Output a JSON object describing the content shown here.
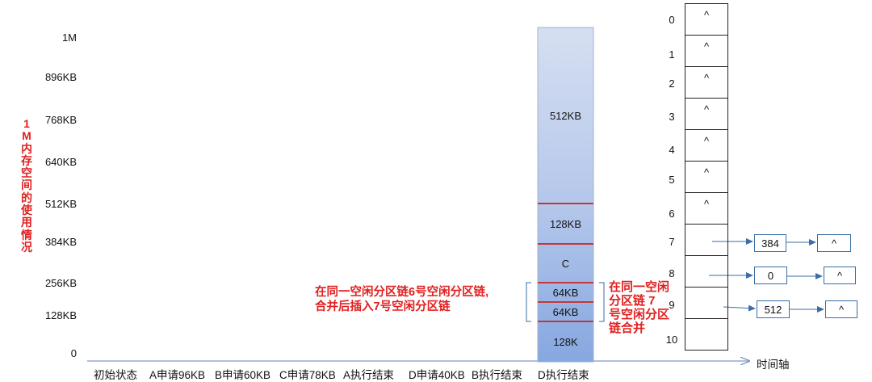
{
  "y_axis": {
    "title": "1M内存空间的使用情况",
    "ticks": [
      "1M",
      "896KB",
      "768KB",
      "640KB",
      "512KB",
      "384KB",
      "256KB",
      "128KB",
      "0"
    ]
  },
  "x_axis": {
    "title": "时间轴",
    "steps": [
      "初始状态",
      "A申请96KB",
      "B申请60KB",
      "C申请78KB",
      "A执行结束",
      "D申请40KB",
      "B执行结束",
      "D执行结束"
    ]
  },
  "memory_column": {
    "blocks": [
      {
        "label": "512KB"
      },
      {
        "label": "128KB"
      },
      {
        "label": "C"
      },
      {
        "label": "64KB"
      },
      {
        "label": "64KB"
      },
      {
        "label": "128K"
      }
    ]
  },
  "annotations": {
    "left_note_line1": "在同一空闲分区链6号空闲分区链,",
    "left_note_line2": "合并后插入7号空闲分区链",
    "right_note": "在同一空闲分区链 7 号空闲分区链合并"
  },
  "free_list": {
    "indices": [
      "0",
      "1",
      "2",
      "3",
      "4",
      "5",
      "6",
      "7",
      "8",
      "9",
      "10"
    ],
    "cells": [
      "^",
      "^",
      "^",
      "^",
      "^",
      "^",
      "^",
      "",
      "",
      "",
      ""
    ],
    "chains": [
      {
        "index": "7",
        "node": "384",
        "end": "^"
      },
      {
        "index": "8",
        "node": "0",
        "end": "^"
      },
      {
        "index": "9",
        "node": "512",
        "end": "^"
      }
    ]
  },
  "colors": {
    "accent_red": "#e02020",
    "block_fill_top": "#cfd9ee",
    "block_fill_bottom": "#8fb0e3",
    "node_border": "#3a6ea5",
    "axis_line": "#7f99c6"
  }
}
